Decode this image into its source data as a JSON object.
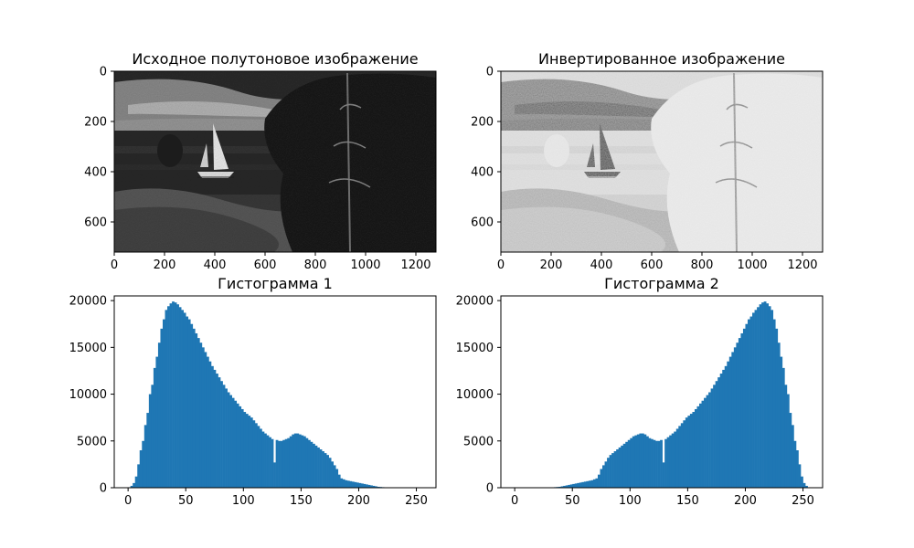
{
  "chart_data": [
    {
      "type": "image",
      "title": "Исходное полутоновое изображение",
      "xlim": [
        0,
        1280
      ],
      "ylim": [
        720,
        0
      ],
      "xticks": [
        0,
        200,
        400,
        600,
        800,
        1000,
        1200
      ],
      "yticks": [
        0,
        200,
        400,
        600
      ],
      "inverted": false
    },
    {
      "type": "image",
      "title": "Инвертированное изображение",
      "xlim": [
        0,
        1280
      ],
      "ylim": [
        720,
        0
      ],
      "xticks": [
        0,
        200,
        400,
        600,
        800,
        1000,
        1200
      ],
      "yticks": [
        0,
        200,
        400,
        600
      ],
      "inverted": true
    },
    {
      "type": "bar",
      "title": "Гистограмма 1",
      "color": "#1f77b4",
      "xlim": [
        -12,
        267
      ],
      "ylim": [
        0,
        20500
      ],
      "xticks": [
        0,
        50,
        100,
        150,
        200,
        250
      ],
      "yticks": [
        0,
        5000,
        10000,
        15000,
        20000
      ],
      "bin_width": 2,
      "x": [
        0,
        2,
        4,
        6,
        8,
        10,
        12,
        14,
        16,
        18,
        20,
        22,
        24,
        26,
        28,
        30,
        32,
        34,
        36,
        38,
        40,
        42,
        44,
        46,
        48,
        50,
        52,
        54,
        56,
        58,
        60,
        62,
        64,
        66,
        68,
        70,
        72,
        74,
        76,
        78,
        80,
        82,
        84,
        86,
        88,
        90,
        92,
        94,
        96,
        98,
        100,
        102,
        104,
        106,
        108,
        110,
        112,
        114,
        116,
        118,
        120,
        122,
        124,
        126,
        128,
        130,
        132,
        134,
        136,
        138,
        140,
        142,
        144,
        146,
        148,
        150,
        152,
        154,
        156,
        158,
        160,
        162,
        164,
        166,
        168,
        170,
        172,
        174,
        176,
        178,
        180,
        182,
        184,
        186,
        188,
        190,
        192,
        194,
        196,
        198,
        200,
        202,
        204,
        206,
        208,
        210,
        212,
        214,
        216,
        218,
        220,
        222,
        224,
        226,
        228,
        230,
        232,
        234,
        236,
        238,
        240,
        242,
        244,
        246,
        248,
        250,
        252,
        254
      ],
      "values": [
        50,
        200,
        500,
        1200,
        2500,
        4000,
        5000,
        6700,
        8000,
        10000,
        11000,
        12800,
        14000,
        15500,
        17000,
        18000,
        19000,
        19400,
        19700,
        19900,
        19800,
        19600,
        19300,
        19000,
        18700,
        18300,
        18000,
        17500,
        17000,
        16500,
        16000,
        15500,
        15000,
        14500,
        14000,
        13500,
        13000,
        12600,
        12200,
        11800,
        11400,
        11000,
        10600,
        10200,
        9900,
        9600,
        9300,
        9000,
        8700,
        8400,
        8100,
        7900,
        7700,
        7500,
        7200,
        6900,
        6600,
        6300,
        6000,
        5800,
        5600,
        5400,
        5200,
        2700,
        5100,
        5000,
        5000,
        5100,
        5200,
        5300,
        5500,
        5700,
        5800,
        5800,
        5700,
        5600,
        5500,
        5300,
        5100,
        4900,
        4700,
        4500,
        4300,
        4100,
        3900,
        3700,
        3500,
        3200,
        2800,
        2400,
        2000,
        1400,
        1000,
        900,
        800,
        750,
        700,
        650,
        600,
        550,
        500,
        450,
        400,
        350,
        300,
        250,
        200,
        150,
        100,
        80,
        60,
        40,
        30,
        20,
        10,
        5,
        5,
        0,
        0,
        0,
        0,
        0,
        0,
        0,
        0,
        0,
        0,
        0
      ]
    },
    {
      "type": "bar",
      "title": "Гистограмма 2",
      "color": "#1f77b4",
      "xlim": [
        -12,
        267
      ],
      "ylim": [
        0,
        20500
      ],
      "xticks": [
        0,
        50,
        100,
        150,
        200,
        250
      ],
      "yticks": [
        0,
        5000,
        10000,
        15000,
        20000
      ],
      "bin_width": 2,
      "x": [
        0,
        2,
        4,
        6,
        8,
        10,
        12,
        14,
        16,
        18,
        20,
        22,
        24,
        26,
        28,
        30,
        32,
        34,
        36,
        38,
        40,
        42,
        44,
        46,
        48,
        50,
        52,
        54,
        56,
        58,
        60,
        62,
        64,
        66,
        68,
        70,
        72,
        74,
        76,
        78,
        80,
        82,
        84,
        86,
        88,
        90,
        92,
        94,
        96,
        98,
        100,
        102,
        104,
        106,
        108,
        110,
        112,
        114,
        116,
        118,
        120,
        122,
        124,
        126,
        128,
        130,
        132,
        134,
        136,
        138,
        140,
        142,
        144,
        146,
        148,
        150,
        152,
        154,
        156,
        158,
        160,
        162,
        164,
        166,
        168,
        170,
        172,
        174,
        176,
        178,
        180,
        182,
        184,
        186,
        188,
        190,
        192,
        194,
        196,
        198,
        200,
        202,
        204,
        206,
        208,
        210,
        212,
        214,
        216,
        218,
        220,
        222,
        224,
        226,
        228,
        230,
        232,
        234,
        236,
        238,
        240,
        242,
        244,
        246,
        248,
        250,
        252,
        254
      ],
      "values": [
        0,
        0,
        0,
        0,
        0,
        0,
        0,
        0,
        0,
        0,
        0,
        5,
        5,
        10,
        20,
        30,
        40,
        60,
        80,
        100,
        150,
        200,
        250,
        300,
        350,
        400,
        450,
        500,
        550,
        600,
        650,
        700,
        750,
        800,
        900,
        1000,
        1400,
        2000,
        2400,
        2800,
        3200,
        3500,
        3700,
        3900,
        4100,
        4300,
        4500,
        4700,
        4900,
        5100,
        5300,
        5500,
        5600,
        5700,
        5800,
        5800,
        5700,
        5500,
        5300,
        5200,
        5100,
        5000,
        5000,
        5100,
        2700,
        5200,
        5400,
        5600,
        5800,
        6000,
        6300,
        6600,
        6900,
        7200,
        7500,
        7700,
        7900,
        8100,
        8400,
        8700,
        9000,
        9300,
        9600,
        9900,
        10200,
        10600,
        11000,
        11400,
        11800,
        12200,
        12600,
        13000,
        13500,
        14000,
        14500,
        15000,
        15500,
        16000,
        16500,
        17000,
        17500,
        18000,
        18300,
        18700,
        19000,
        19300,
        19600,
        19800,
        19900,
        19700,
        19400,
        19000,
        18000,
        17000,
        15500,
        14000,
        12800,
        11000,
        10000,
        8000,
        6700,
        5000,
        4000,
        2500,
        1200,
        500,
        200,
        50
      ]
    }
  ]
}
